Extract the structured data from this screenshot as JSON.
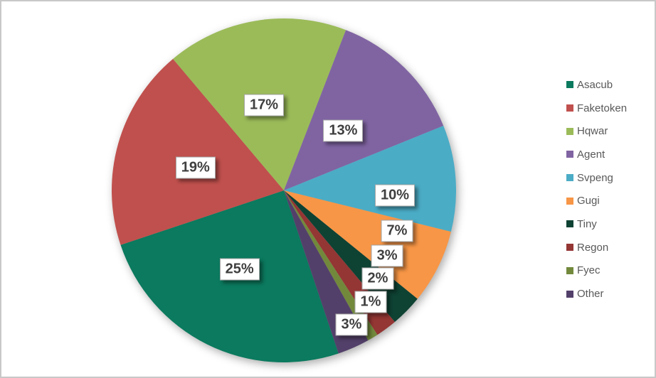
{
  "chart_data": {
    "type": "pie",
    "categories": [
      "Asacub",
      "Faketoken",
      "Hqwar",
      "Agent",
      "Svpeng",
      "Gugi",
      "Tiny",
      "Regon",
      "Fyec",
      "Other"
    ],
    "values": [
      25,
      19,
      17,
      13,
      10,
      7,
      3,
      2,
      1,
      3
    ],
    "data_labels": [
      "25%",
      "19%",
      "17%",
      "13%",
      "10%",
      "7%",
      "3%",
      "2%",
      "1%",
      "3%"
    ],
    "colors": [
      "#0B7A5E",
      "#C0504D",
      "#9BBB59",
      "#8064A2",
      "#4BACC6",
      "#F79646",
      "#0E4233",
      "#943634",
      "#72893C",
      "#53406A"
    ],
    "title": "",
    "legend_position": "right",
    "start_angle_deg": 161.5,
    "label_text_color": "#3F3F3F",
    "legend_text_color": "#595959"
  }
}
